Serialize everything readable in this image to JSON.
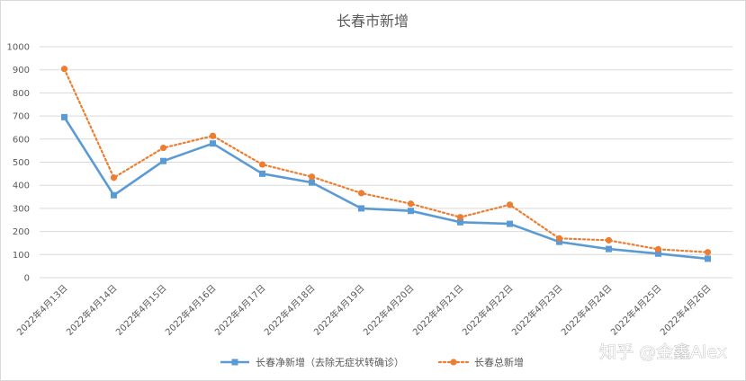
{
  "chart_data": {
    "type": "line",
    "title": "长春市新增",
    "xlabel": "",
    "ylabel": "",
    "ylim": [
      0,
      1000
    ],
    "yticks": [
      0,
      100,
      200,
      300,
      400,
      500,
      600,
      700,
      800,
      900,
      1000
    ],
    "grid": true,
    "legend_position": "bottom",
    "categories": [
      "2022年4月13日",
      "2022年4月14日",
      "2022年4月15日",
      "2022年4月16日",
      "2022年4月17日",
      "2022年4月18日",
      "2022年4月19日",
      "2022年4月20日",
      "2022年4月21日",
      "2022年4月22日",
      "2022年4月23日",
      "2022年4月24日",
      "2022年4月25日",
      "2022年4月26日"
    ],
    "series": [
      {
        "name": "长春净新增（去除无症状转确诊）",
        "values": [
          695,
          357,
          505,
          581,
          450,
          412,
          300,
          289,
          240,
          233,
          155,
          124,
          104,
          82
        ],
        "color": "#5B9BD5",
        "marker": "square",
        "line_style": "solid"
      },
      {
        "name": "长春总新增",
        "values": [
          904,
          433,
          562,
          614,
          490,
          437,
          366,
          320,
          262,
          316,
          170,
          162,
          123,
          110
        ],
        "color": "#ED7D31",
        "marker": "circle",
        "line_style": "dotted"
      }
    ],
    "watermark": "知乎 @金鑫Alex"
  }
}
